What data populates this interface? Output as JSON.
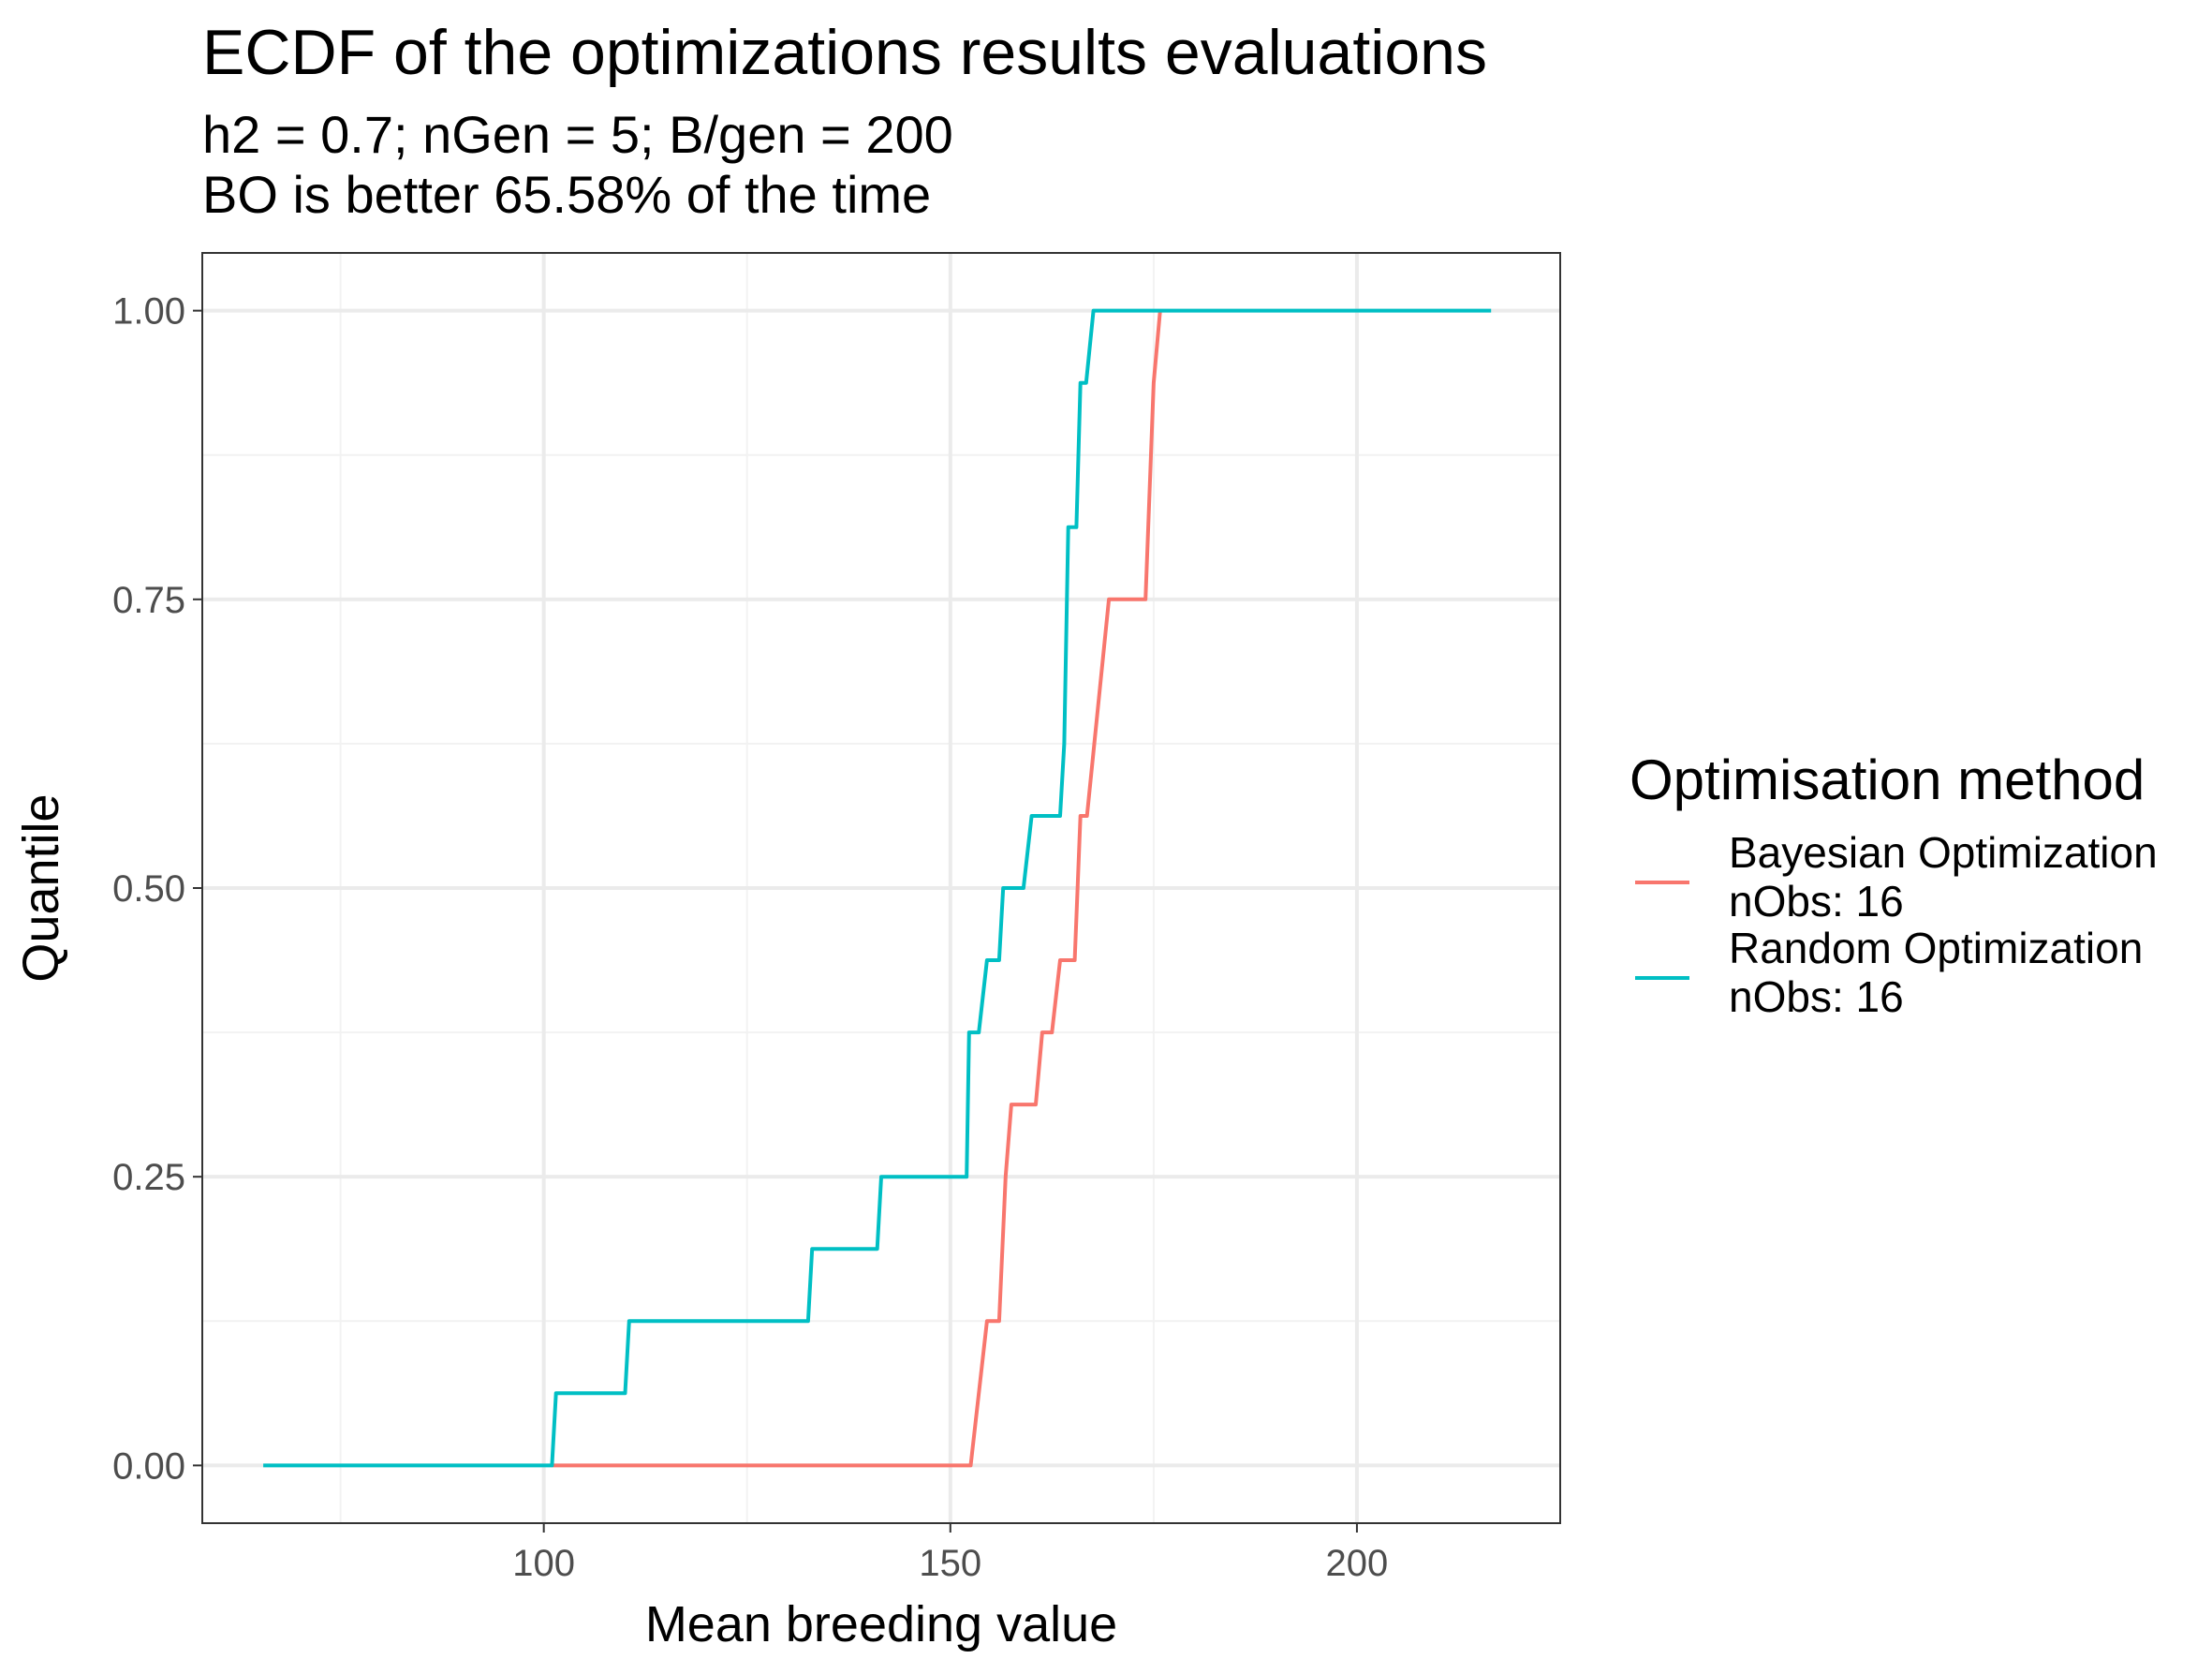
{
  "chart_data": {
    "type": "line",
    "title": "ECDF of the optimizations results evaluations",
    "subtitle_lines": [
      "h2 = 0.7; nGen = 5; B/gen = 200",
      "BO is better 65.58% of the time"
    ],
    "xlabel": "Mean breeding value",
    "ylabel": "Quantile",
    "xlim": [
      58,
      225
    ],
    "ylim": [
      -0.05,
      1.05
    ],
    "x_ticks": [
      100,
      150,
      200
    ],
    "x_tick_labels": [
      "100",
      "150",
      "200"
    ],
    "y_ticks": [
      0,
      0.25,
      0.5,
      0.75,
      1
    ],
    "y_tick_labels": [
      "0.00",
      "0.25",
      "0.50",
      "0.75",
      "1.00"
    ],
    "grid": true,
    "legend": {
      "title": "Optimisation method",
      "position": "right",
      "entries": [
        {
          "label_lines": [
            "Bayesian Optimization",
            "nObs: 16"
          ],
          "color": "#F8766D"
        },
        {
          "label_lines": [
            "Random Optimization",
            "nObs: 16"
          ],
          "color": "#00BFC4"
        }
      ]
    },
    "series": [
      {
        "color": "#F8766D",
        "points": [
          [
            101,
            0
          ],
          [
            152.5,
            0
          ],
          [
            154.5,
            0.125
          ],
          [
            156,
            0.125
          ],
          [
            156.8,
            0.25
          ],
          [
            157.5,
            0.3125
          ],
          [
            160.5,
            0.3125
          ],
          [
            161.3,
            0.375
          ],
          [
            162.5,
            0.375
          ],
          [
            163.5,
            0.4375
          ],
          [
            165.3,
            0.4375
          ],
          [
            166,
            0.5625
          ],
          [
            166.8,
            0.5625
          ],
          [
            169.5,
            0.75
          ],
          [
            174,
            0.75
          ],
          [
            175,
            0.9375
          ],
          [
            175.8,
            1
          ]
        ]
      },
      {
        "color": "#00BFC4",
        "points": [
          [
            65.5,
            0
          ],
          [
            101,
            0
          ],
          [
            101.5,
            0.0625
          ],
          [
            110,
            0.0625
          ],
          [
            110.5,
            0.125
          ],
          [
            132.5,
            0.125
          ],
          [
            133,
            0.1875
          ],
          [
            141,
            0.1875
          ],
          [
            141.5,
            0.25
          ],
          [
            152,
            0.25
          ],
          [
            152.3,
            0.375
          ],
          [
            153.5,
            0.375
          ],
          [
            154.5,
            0.4375
          ],
          [
            156,
            0.4375
          ],
          [
            156.5,
            0.5
          ],
          [
            159,
            0.5
          ],
          [
            160,
            0.5625
          ],
          [
            163.5,
            0.5625
          ],
          [
            164,
            0.625
          ],
          [
            164.5,
            0.8125
          ],
          [
            165.5,
            0.8125
          ],
          [
            166,
            0.9375
          ],
          [
            166.7,
            0.9375
          ],
          [
            167.6,
            1
          ],
          [
            216.5,
            1
          ]
        ]
      }
    ]
  }
}
